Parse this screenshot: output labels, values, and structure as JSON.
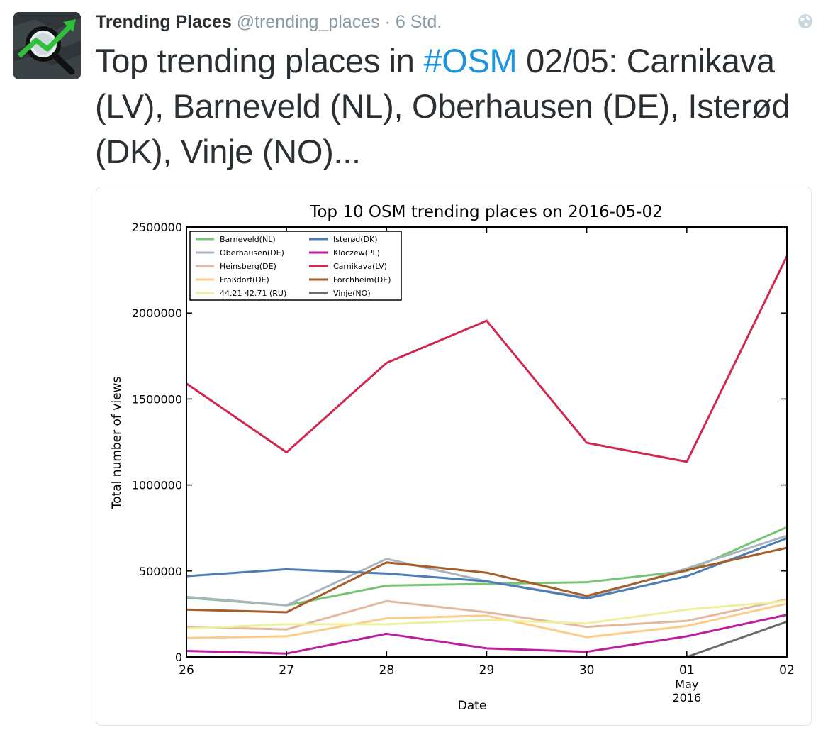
{
  "tweet": {
    "author_name": "Trending Places",
    "handle": "@trending_places",
    "separator": "·",
    "time": "6 Std.",
    "text_before": "Top trending places in ",
    "hashtag": "#OSM",
    "text_after": " 02/05: Carnikava (LV), Barneveld (NL), Oberhausen (DE), Isterød (DK), Vinje (NO)...",
    "avatar_icon": "trending-chart-magnifier-icon",
    "globe_icon": "globe-icon"
  },
  "chart_data": {
    "type": "line",
    "title": "Top 10 OSM trending places on 2016-05-02",
    "xlabel": "Date",
    "ylabel": "Total number of views",
    "x": [
      "26",
      "27",
      "28",
      "29",
      "30",
      "01",
      "02"
    ],
    "x_sublabel": [
      "May",
      "2016"
    ],
    "ylim": [
      0,
      2500000
    ],
    "yticks": [
      "0",
      "500000",
      "1000000",
      "1500000",
      "2000000",
      "2500000"
    ],
    "legend_position": "top-left",
    "grid": false,
    "series": [
      {
        "name": "Barneveld(NL)",
        "color": "#77c477",
        "values": [
          345000,
          300000,
          415000,
          425000,
          435000,
          500000,
          755000
        ]
      },
      {
        "name": "Oberhausen(DE)",
        "color": "#a9b4c0",
        "values": [
          350000,
          300000,
          570000,
          440000,
          345000,
          515000,
          705000
        ]
      },
      {
        "name": "Heinsberg(DE)",
        "color": "#e2b8a1",
        "values": [
          175000,
          160000,
          325000,
          260000,
          175000,
          210000,
          335000
        ]
      },
      {
        "name": "Fraßdorf(DE)",
        "color": "#fccc8a",
        "values": [
          110000,
          120000,
          225000,
          240000,
          115000,
          180000,
          310000
        ]
      },
      {
        "name": "44.21 42.71 (RU)",
        "color": "#eef0a0",
        "values": [
          165000,
          190000,
          190000,
          215000,
          195000,
          275000,
          325000
        ]
      },
      {
        "name": "Isterød(DK)",
        "color": "#4c7cb4",
        "values": [
          470000,
          510000,
          485000,
          440000,
          340000,
          470000,
          690000
        ]
      },
      {
        "name": "Kloczew(PL)",
        "color": "#bb1f9f",
        "values": [
          35000,
          20000,
          135000,
          50000,
          30000,
          120000,
          245000
        ]
      },
      {
        "name": "Carnikava(LV)",
        "color": "#d0284e",
        "values": [
          1590000,
          1190000,
          1710000,
          1955000,
          1245000,
          1135000,
          2330000
        ]
      },
      {
        "name": "Forchheim(DE)",
        "color": "#a75d28",
        "values": [
          275000,
          260000,
          550000,
          490000,
          355000,
          505000,
          635000
        ]
      },
      {
        "name": "Vinje(NO)",
        "color": "#6b6b6b",
        "values": [
          null,
          null,
          null,
          null,
          null,
          0,
          205000
        ]
      }
    ]
  }
}
